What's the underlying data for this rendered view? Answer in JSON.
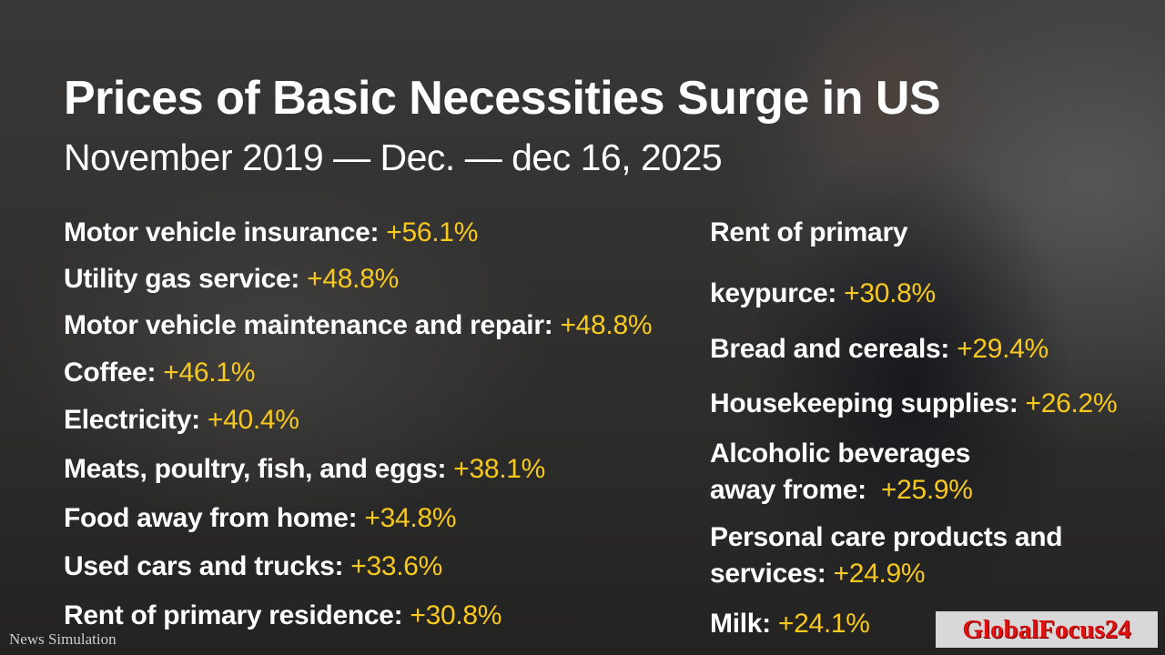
{
  "title": "Prices of Basic Necessities Surge in US",
  "subtitle": "November 2019 — Dec. — dec 16, 2025",
  "left_items": [
    {
      "label": "Motor vehicle insurance:",
      "value": "+56.1%"
    },
    {
      "label": "Utility gas service:",
      "value": "+48.8%"
    },
    {
      "label": "Motor vehicle maintenance and repair:",
      "value": "+48.8%"
    },
    {
      "label": "Coffee:",
      "value": "+46.1%"
    },
    {
      "label": "Electricity:",
      "value": "+40.4%"
    },
    {
      "label": "Meats, poultry, fish, and eggs:",
      "value": "+38.1%"
    },
    {
      "label": "Food away from home:",
      "value": "+34.8%"
    },
    {
      "label": "Used cars and trucks:",
      "value": "+33.6%"
    },
    {
      "label": "Rent of primary residence:",
      "value": "+30.8%"
    }
  ],
  "right_items": [
    {
      "label": "Rent of primary",
      "value": ""
    },
    {
      "label": "keypurce:",
      "value": "+30.8%"
    },
    {
      "label": "Bread and cereals:",
      "value": "+29.4%"
    },
    {
      "label": "Housekeeping supplies:",
      "value": "+26.2%"
    },
    {
      "label": "Alcoholic beverages",
      "label2": "away frome:",
      "value": "+25.9%"
    },
    {
      "label": "Personal care products and",
      "label2": "services:",
      "value": "+24.9%"
    },
    {
      "label": "Milk:",
      "value": "+24.1%"
    }
  ],
  "watermark": "News Simulation",
  "logo": "GlobalFocus24"
}
